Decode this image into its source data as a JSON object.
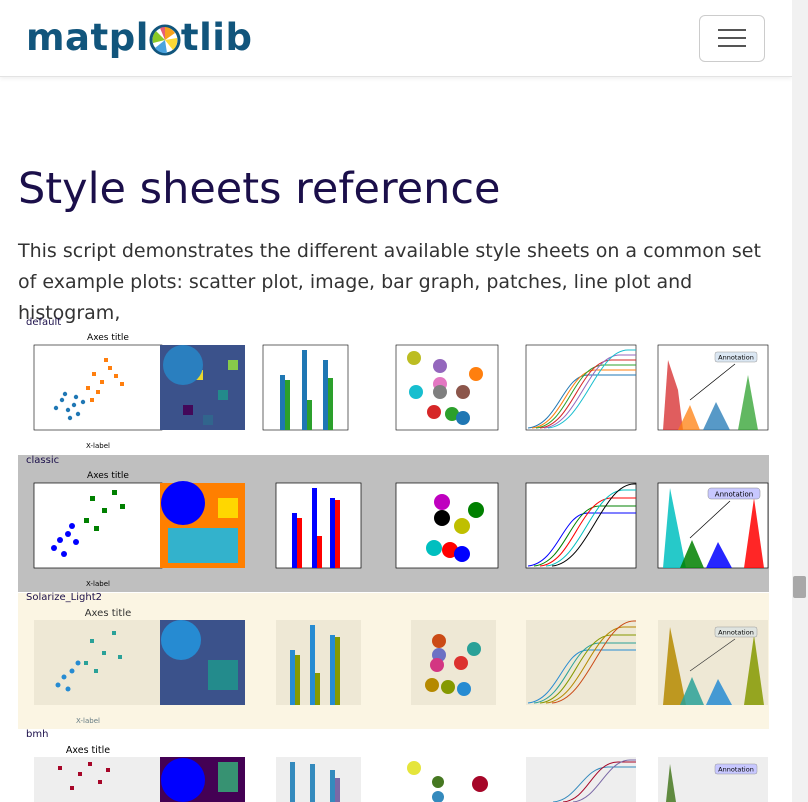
{
  "navbar": {
    "logo_text_left": "matpl",
    "logo_text_right": "tlib",
    "menu_toggle": "hamburger-icon"
  },
  "page": {
    "title": "Style sheets reference",
    "intro": "This script demonstrates the different available style sheets on a common set of example plots: scatter plot, image, bar graph, patches, line plot and histogram,"
  },
  "styles": [
    {
      "name": "default"
    },
    {
      "name": "classic"
    },
    {
      "name": "Solarize_Light2"
    },
    {
      "name": "bmh"
    }
  ],
  "figure_text": {
    "axes_title": "Axes title",
    "x_label": "X-label",
    "annotation": "Annotation"
  },
  "colors": {
    "logo": "#11557c",
    "title": "#1b0f4a",
    "classic_band": "#bfbfbf",
    "solarize_band": "#fbf5e3"
  }
}
